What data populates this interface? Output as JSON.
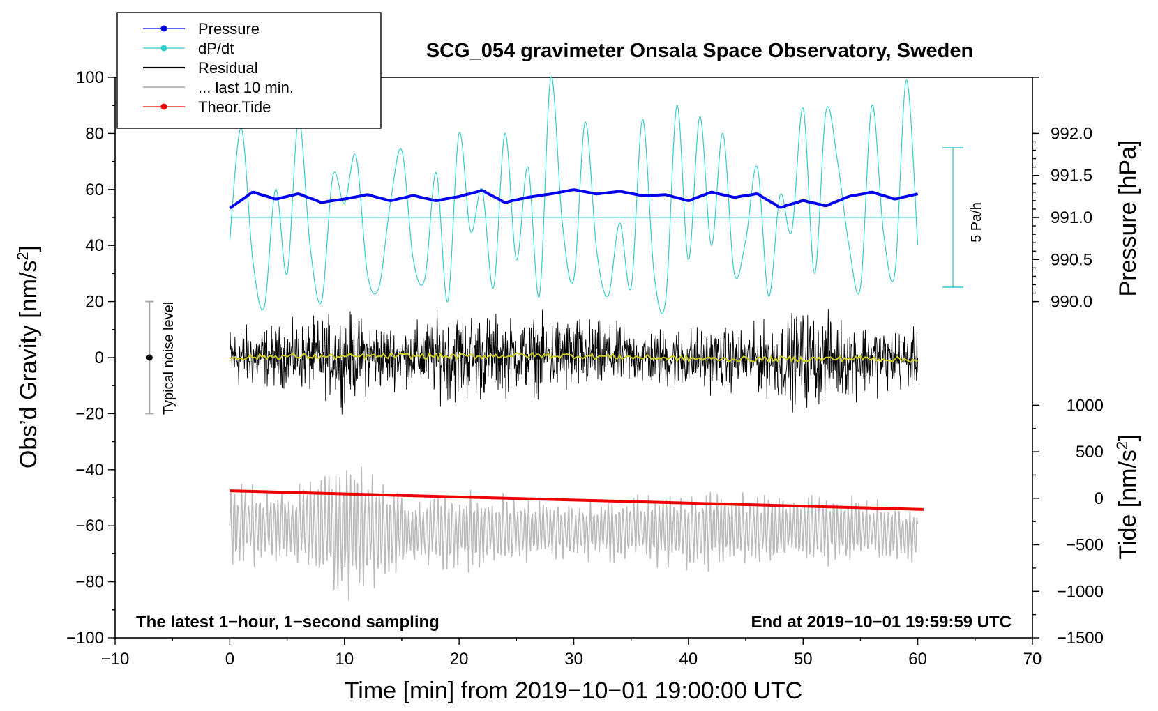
{
  "chart_data": {
    "type": "line",
    "title": "SCG_054 gravimeter Onsala Space Observatory, Sweden",
    "xlabel": "Time [min] from 2019−10−01 19:00:00 UTC",
    "ylabel_left": "Obs’d Gravity [nm/s²]",
    "ylabel_right_top": "Pressure [hPa]",
    "ylabel_right_bottom": "Tide [nm/s²]",
    "xlim": [
      -10,
      70
    ],
    "ylim": [
      -100,
      100
    ],
    "x_ticks": [
      "−10",
      "0",
      "10",
      "20",
      "30",
      "40",
      "50",
      "60",
      "70"
    ],
    "x_tick_values": [
      -10,
      0,
      10,
      20,
      30,
      40,
      50,
      60,
      70
    ],
    "y_ticks": [
      "100",
      "80",
      "60",
      "40",
      "20",
      "0",
      "−20",
      "−40",
      "−60",
      "−80",
      "−100"
    ],
    "y_tick_values": [
      100,
      80,
      60,
      40,
      20,
      0,
      -20,
      -40,
      -60,
      -80,
      -100
    ],
    "pressure_axis": {
      "range_hpa": [
        990.0,
        992.0
      ],
      "maps_to_left_units": [
        20,
        80
      ],
      "ticks": [
        "992.0",
        "991.5",
        "991.0",
        "990.5",
        "990.0"
      ],
      "tick_values": [
        992.0,
        991.5,
        991.0,
        990.5,
        990.0
      ]
    },
    "tide_axis": {
      "range": [
        -1500,
        1000
      ],
      "maps_to_left_units": [
        -100,
        -17
      ],
      "ticks": [
        "1000",
        "500",
        "0",
        "−500",
        "−1000",
        "−1500"
      ],
      "tick_values": [
        1000,
        500,
        0,
        -500,
        -1000,
        -1500
      ]
    },
    "legend": [
      {
        "label": "Pressure",
        "color": "#0000ee",
        "marker": "dot"
      },
      {
        "label": "dP/dt",
        "color": "#33cccc",
        "marker": "dot"
      },
      {
        "label": "Residual",
        "color": "#000000",
        "marker": "none"
      },
      {
        "label": "... last 10 min.",
        "color": "#bbbbbb",
        "marker": "none"
      },
      {
        "label": "Theor.Tide",
        "color": "#ee0000",
        "marker": "dot"
      }
    ],
    "series": [
      {
        "name": "Pressure",
        "color": "#0000ee",
        "units": "hPa",
        "x": [
          0,
          2,
          4,
          6,
          8,
          10,
          12,
          14,
          16,
          18,
          20,
          22,
          24,
          26,
          28,
          30,
          32,
          34,
          36,
          38,
          40,
          42,
          44,
          46,
          48,
          50,
          52,
          54,
          56,
          58,
          60
        ],
        "values": [
          991.11,
          991.3,
          991.22,
          991.28,
          991.18,
          991.22,
          991.27,
          991.2,
          991.26,
          991.2,
          991.25,
          991.32,
          991.18,
          991.24,
          991.28,
          991.33,
          991.28,
          991.31,
          991.26,
          991.27,
          991.2,
          991.3,
          991.24,
          991.28,
          991.12,
          991.2,
          991.14,
          991.25,
          991.3,
          991.22,
          991.28
        ]
      },
      {
        "name": "dP/dt",
        "color": "#33cccc",
        "units": "Pa/h",
        "scale_bar": "5 Pa/h",
        "zero_line_left_units": 50,
        "x": [
          0,
          1,
          2,
          3,
          4,
          5,
          6,
          7,
          8,
          9,
          10,
          11,
          12,
          13,
          14,
          15,
          16,
          17,
          18,
          19,
          20,
          21,
          22,
          23,
          24,
          25,
          26,
          27,
          28,
          29,
          30,
          31,
          32,
          33,
          34,
          35,
          36,
          37,
          38,
          39,
          40,
          41,
          42,
          43,
          44,
          45,
          46,
          47,
          48,
          49,
          50,
          51,
          52,
          53,
          54,
          55,
          56,
          57,
          58,
          59,
          60
        ],
        "values": [
          42,
          82,
          35,
          18,
          60,
          30,
          85,
          40,
          20,
          65,
          55,
          72,
          30,
          25,
          55,
          74,
          35,
          28,
          66,
          20,
          80,
          45,
          60,
          25,
          80,
          35,
          68,
          22,
          100,
          48,
          28,
          84,
          38,
          22,
          48,
          25,
          85,
          30,
          20,
          90,
          35,
          86,
          40,
          80,
          30,
          42,
          68,
          22,
          58,
          45,
          89,
          30,
          88,
          70,
          40,
          25,
          90,
          45,
          30,
          99,
          40
        ]
      },
      {
        "name": "Residual",
        "color": "#000000",
        "units": "nm/s²",
        "x": [
          0,
          5,
          10,
          15,
          20,
          25,
          30,
          35,
          40,
          45,
          50,
          55,
          60
        ],
        "values": [
          0,
          0.5,
          0.3,
          0.6,
          0.4,
          0.8,
          0.6,
          0.2,
          -0.4,
          -0.6,
          -0.5,
          -0.3,
          -0.8
        ],
        "envelope": [
          16,
          15,
          22,
          14,
          24,
          18,
          20,
          14,
          16,
          15,
          24,
          18,
          14
        ]
      },
      {
        "name": "... last 10 min.",
        "color": "#bbbbbb",
        "units": "nm/s²",
        "x": [
          0,
          5,
          10,
          15,
          20,
          25,
          30,
          35,
          40,
          45,
          50,
          55,
          60
        ],
        "values": [
          -60,
          -60,
          -62,
          -62,
          -62,
          -61,
          -62,
          -61,
          -62,
          -61,
          -61,
          -61,
          -63
        ],
        "envelope": [
          15,
          12,
          25,
          14,
          14,
          12,
          10,
          12,
          15,
          12,
          14,
          11,
          10
        ]
      },
      {
        "name": "Theor.Tide",
        "color": "#ee0000",
        "units": "nm/s²",
        "x": [
          0,
          60.5
        ],
        "values": [
          80,
          -120
        ]
      }
    ],
    "noise_bar": {
      "label": "Typical noise level",
      "center": 0,
      "range": [
        -20,
        20
      ],
      "x": -7
    },
    "annotations": {
      "left": "The latest 1−hour, 1−second sampling",
      "right": "End at 2019−10−01 19:59:59 UTC"
    }
  }
}
